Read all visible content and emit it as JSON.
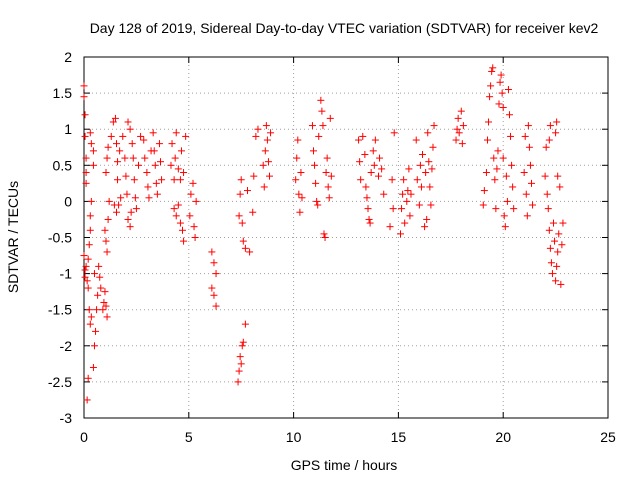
{
  "chart_data": {
    "type": "scatter",
    "title": "Day 128 of 2019, Sidereal Day-to-day VTEC variation (SDTVAR) for receiver kev2",
    "xlabel": "GPS time / hours",
    "ylabel": "SDTVAR / TECUs",
    "xlim": [
      0,
      25
    ],
    "ylim": [
      -3,
      2
    ],
    "xticks": [
      0,
      5,
      10,
      15,
      20,
      25
    ],
    "xtick_labels": [
      "0",
      "5",
      "10",
      "15",
      "20",
      "25"
    ],
    "yticks": [
      2,
      1.5,
      1,
      0.5,
      0,
      -0.5,
      -1,
      -1.5,
      -2,
      -2.5,
      -3
    ],
    "ytick_labels": [
      "2",
      "1.5",
      "1",
      "0.5",
      "0",
      "-0.5",
      "-1",
      "-1.5",
      "-2",
      "-2.5",
      "-3"
    ],
    "grid": true,
    "marker": "+",
    "color": "#ff0000",
    "series": [
      {
        "name": "SDTVAR",
        "points": [
          [
            0.0,
            1.6
          ],
          [
            0.0,
            1.45
          ],
          [
            0.05,
            1.2
          ],
          [
            0.05,
            0.9
          ],
          [
            0.1,
            0.6
          ],
          [
            0.1,
            0.4
          ],
          [
            0.1,
            0.25
          ],
          [
            0.0,
            -0.75
          ],
          [
            0.05,
            -0.95
          ],
          [
            0.05,
            -1.05
          ],
          [
            0.1,
            -0.9
          ],
          [
            0.15,
            -1.1
          ],
          [
            0.2,
            -0.8
          ],
          [
            0.25,
            -0.6
          ],
          [
            0.3,
            -0.4
          ],
          [
            0.3,
            -0.2
          ],
          [
            0.35,
            0.0
          ],
          [
            0.2,
            -1.2
          ],
          [
            0.25,
            -1.5
          ],
          [
            0.3,
            -1.7
          ],
          [
            0.35,
            -1.6
          ],
          [
            0.2,
            -2.45
          ],
          [
            0.15,
            -2.75
          ],
          [
            0.45,
            -2.3
          ],
          [
            0.5,
            -2.0
          ],
          [
            0.55,
            -1.8
          ],
          [
            0.6,
            -1.5
          ],
          [
            0.65,
            -1.3
          ],
          [
            0.5,
            -1.0
          ],
          [
            0.7,
            -0.9
          ],
          [
            0.45,
            0.7
          ],
          [
            0.45,
            0.5
          ],
          [
            0.35,
            0.8
          ],
          [
            0.3,
            0.95
          ],
          [
            0.75,
            -1.05
          ],
          [
            0.8,
            -1.2
          ],
          [
            0.9,
            -1.5
          ],
          [
            0.95,
            -1.4
          ],
          [
            1.0,
            -1.25
          ],
          [
            1.05,
            -1.45
          ],
          [
            1.1,
            -1.6
          ],
          [
            1.0,
            -0.4
          ],
          [
            1.05,
            -0.55
          ],
          [
            1.1,
            -0.7
          ],
          [
            1.15,
            -0.25
          ],
          [
            1.2,
            0.0
          ],
          [
            1.05,
            0.4
          ],
          [
            1.1,
            0.6
          ],
          [
            1.15,
            0.75
          ],
          [
            1.3,
            0.9
          ],
          [
            1.4,
            1.1
          ],
          [
            1.5,
            1.15
          ],
          [
            1.55,
            0.8
          ],
          [
            1.6,
            0.55
          ],
          [
            1.6,
            0.3
          ],
          [
            1.45,
            -0.05
          ],
          [
            1.55,
            -0.15
          ],
          [
            1.65,
            -0.05
          ],
          [
            1.75,
            0.05
          ],
          [
            1.7,
            0.7
          ],
          [
            1.85,
            0.9
          ],
          [
            1.95,
            0.6
          ],
          [
            2.0,
            0.35
          ],
          [
            2.05,
            0.1
          ],
          [
            2.1,
            -0.25
          ],
          [
            2.2,
            -0.35
          ],
          [
            2.25,
            -0.15
          ],
          [
            2.1,
            1.1
          ],
          [
            2.2,
            1.0
          ],
          [
            2.3,
            0.8
          ],
          [
            2.35,
            0.6
          ],
          [
            2.4,
            0.3
          ],
          [
            2.45,
            0.05
          ],
          [
            2.5,
            -0.1
          ],
          [
            2.6,
            0.5
          ],
          [
            2.7,
            0.9
          ],
          [
            2.85,
            0.85
          ],
          [
            2.9,
            0.6
          ],
          [
            3.0,
            0.4
          ],
          [
            3.05,
            0.2
          ],
          [
            3.1,
            0.05
          ],
          [
            3.2,
            0.7
          ],
          [
            3.3,
            0.95
          ],
          [
            3.35,
            0.7
          ],
          [
            3.4,
            0.5
          ],
          [
            3.45,
            0.25
          ],
          [
            3.5,
            0.1
          ],
          [
            3.6,
            0.8
          ],
          [
            3.65,
            0.55
          ],
          [
            3.7,
            0.3
          ],
          [
            4.15,
            0.5
          ],
          [
            4.2,
            0.8
          ],
          [
            4.3,
            0.3
          ],
          [
            4.35,
            0.6
          ],
          [
            4.4,
            0.95
          ],
          [
            4.5,
            0.45
          ],
          [
            4.6,
            0.3
          ],
          [
            4.65,
            0.7
          ],
          [
            4.75,
            0.4
          ],
          [
            4.85,
            0.9
          ],
          [
            4.3,
            -0.1
          ],
          [
            4.4,
            -0.2
          ],
          [
            4.5,
            -0.05
          ],
          [
            4.6,
            -0.3
          ],
          [
            4.7,
            -0.4
          ],
          [
            4.75,
            -0.55
          ],
          [
            5.05,
            -0.2
          ],
          [
            5.1,
            0.1
          ],
          [
            5.2,
            0.25
          ],
          [
            5.25,
            -0.35
          ],
          [
            5.3,
            -0.5
          ],
          [
            5.35,
            0.0
          ],
          [
            6.1,
            -0.7
          ],
          [
            6.2,
            -0.85
          ],
          [
            6.3,
            -1.0
          ],
          [
            6.1,
            -1.2
          ],
          [
            6.2,
            -1.3
          ],
          [
            6.3,
            -1.45
          ],
          [
            7.35,
            -2.5
          ],
          [
            7.4,
            -2.35
          ],
          [
            7.45,
            -2.15
          ],
          [
            7.5,
            -2.25
          ],
          [
            7.55,
            -2.0
          ],
          [
            7.6,
            -1.95
          ],
          [
            7.7,
            -1.7
          ],
          [
            7.4,
            -0.2
          ],
          [
            7.45,
            0.1
          ],
          [
            7.5,
            0.3
          ],
          [
            7.55,
            -0.3
          ],
          [
            7.6,
            -0.55
          ],
          [
            7.7,
            -0.65
          ],
          [
            7.8,
            0.15
          ],
          [
            7.9,
            -0.7
          ],
          [
            8.05,
            -0.15
          ],
          [
            8.1,
            0.35
          ],
          [
            8.2,
            0.9
          ],
          [
            8.3,
            1.0
          ],
          [
            8.55,
            0.5
          ],
          [
            8.6,
            0.2
          ],
          [
            8.65,
            0.7
          ],
          [
            8.7,
            1.05
          ],
          [
            8.75,
            0.85
          ],
          [
            8.8,
            0.55
          ],
          [
            8.85,
            0.35
          ],
          [
            8.9,
            0.95
          ],
          [
            10.1,
            0.3
          ],
          [
            10.15,
            0.6
          ],
          [
            10.2,
            0.85
          ],
          [
            10.25,
            0.1
          ],
          [
            10.3,
            -0.15
          ],
          [
            10.35,
            0.4
          ],
          [
            10.4,
            0.05
          ],
          [
            10.9,
            1.05
          ],
          [
            10.95,
            0.7
          ],
          [
            11.0,
            0.5
          ],
          [
            11.05,
            0.25
          ],
          [
            11.1,
            0.0
          ],
          [
            11.15,
            -0.05
          ],
          [
            11.2,
            0.9
          ],
          [
            11.3,
            1.4
          ],
          [
            11.35,
            1.25
          ],
          [
            11.4,
            1.05
          ],
          [
            11.45,
            -0.45
          ],
          [
            11.5,
            -0.5
          ],
          [
            11.55,
            0.4
          ],
          [
            11.6,
            0.6
          ],
          [
            11.65,
            0.2
          ],
          [
            11.7,
            0.05
          ],
          [
            11.75,
            1.15
          ],
          [
            11.8,
            0.35
          ],
          [
            13.1,
            0.85
          ],
          [
            13.15,
            0.55
          ],
          [
            13.2,
            0.3
          ],
          [
            13.3,
            0.9
          ],
          [
            13.4,
            0.65
          ],
          [
            13.45,
            0.2
          ],
          [
            13.5,
            0.05
          ],
          [
            13.55,
            -0.1
          ],
          [
            13.6,
            -0.25
          ],
          [
            13.65,
            -0.3
          ],
          [
            13.7,
            0.4
          ],
          [
            13.8,
            0.7
          ],
          [
            13.85,
            0.5
          ],
          [
            13.9,
            0.85
          ],
          [
            14.05,
            0.35
          ],
          [
            14.1,
            0.6
          ],
          [
            14.2,
            0.45
          ],
          [
            14.3,
            0.1
          ],
          [
            14.6,
            -0.35
          ],
          [
            14.7,
            0.3
          ],
          [
            14.8,
            0.95
          ],
          [
            14.75,
            -0.1
          ],
          [
            15.1,
            -0.45
          ],
          [
            15.15,
            -0.1
          ],
          [
            15.2,
            0.1
          ],
          [
            15.25,
            0.3
          ],
          [
            15.3,
            -0.3
          ],
          [
            15.4,
            0.0
          ],
          [
            15.45,
            0.15
          ],
          [
            15.5,
            0.45
          ],
          [
            15.55,
            -0.2
          ],
          [
            15.6,
            0.1
          ],
          [
            15.85,
            0.85
          ],
          [
            15.9,
            0.3
          ],
          [
            16.0,
            -0.05
          ],
          [
            16.05,
            0.5
          ],
          [
            16.1,
            0.2
          ],
          [
            16.15,
            0.65
          ],
          [
            16.25,
            -0.35
          ],
          [
            16.3,
            0.4
          ],
          [
            16.35,
            -0.25
          ],
          [
            16.4,
            0.95
          ],
          [
            16.45,
            0.55
          ],
          [
            16.5,
            0.2
          ],
          [
            16.55,
            -0.05
          ],
          [
            16.6,
            0.45
          ],
          [
            16.65,
            0.75
          ],
          [
            16.7,
            1.05
          ],
          [
            17.75,
            0.85
          ],
          [
            17.8,
            1.0
          ],
          [
            17.85,
            1.15
          ],
          [
            17.9,
            0.95
          ],
          [
            18.0,
            1.25
          ],
          [
            18.05,
            0.8
          ],
          [
            18.1,
            1.05
          ],
          [
            19.05,
            -0.05
          ],
          [
            19.1,
            0.15
          ],
          [
            19.2,
            0.4
          ],
          [
            19.25,
            0.85
          ],
          [
            19.3,
            1.1
          ],
          [
            19.35,
            1.45
          ],
          [
            19.4,
            1.6
          ],
          [
            19.45,
            1.8
          ],
          [
            19.5,
            1.85
          ],
          [
            19.55,
            0.6
          ],
          [
            19.6,
            0.3
          ],
          [
            19.65,
            -0.1
          ],
          [
            19.7,
            0.45
          ],
          [
            19.75,
            0.7
          ],
          [
            19.8,
            1.35
          ],
          [
            19.85,
            1.65
          ],
          [
            19.9,
            1.75
          ],
          [
            19.95,
            1.5
          ],
          [
            20.0,
            1.3
          ],
          [
            20.0,
            0.6
          ],
          [
            20.05,
            -0.2
          ],
          [
            20.1,
            -0.35
          ],
          [
            20.15,
            0.35
          ],
          [
            20.2,
            0.0
          ],
          [
            20.25,
            1.55
          ],
          [
            20.3,
            1.2
          ],
          [
            20.35,
            0.9
          ],
          [
            20.4,
            0.5
          ],
          [
            20.45,
            0.2
          ],
          [
            20.5,
            -0.1
          ],
          [
            21.0,
            0.4
          ],
          [
            21.05,
            0.9
          ],
          [
            21.1,
            0.1
          ],
          [
            21.15,
            -0.2
          ],
          [
            21.2,
            1.05
          ],
          [
            21.25,
            0.75
          ],
          [
            21.3,
            0.5
          ],
          [
            21.35,
            0.25
          ],
          [
            21.4,
            -0.05
          ],
          [
            22.0,
            0.35
          ],
          [
            22.05,
            0.75
          ],
          [
            22.1,
            0.1
          ],
          [
            22.15,
            -0.1
          ],
          [
            22.2,
            0.85
          ],
          [
            22.25,
            1.05
          ],
          [
            22.2,
            -0.4
          ],
          [
            22.25,
            -0.65
          ],
          [
            22.3,
            -0.85
          ],
          [
            22.35,
            -1.0
          ],
          [
            22.4,
            -0.3
          ],
          [
            22.45,
            -0.55
          ],
          [
            22.5,
            0.95
          ],
          [
            22.55,
            1.1
          ],
          [
            22.6,
            0.35
          ],
          [
            22.5,
            -1.1
          ],
          [
            22.55,
            -0.9
          ],
          [
            22.6,
            -0.7
          ],
          [
            22.65,
            -0.45
          ],
          [
            22.7,
            0.2
          ],
          [
            22.75,
            -1.15
          ],
          [
            22.8,
            -0.6
          ],
          [
            22.85,
            -0.3
          ]
        ]
      }
    ]
  }
}
